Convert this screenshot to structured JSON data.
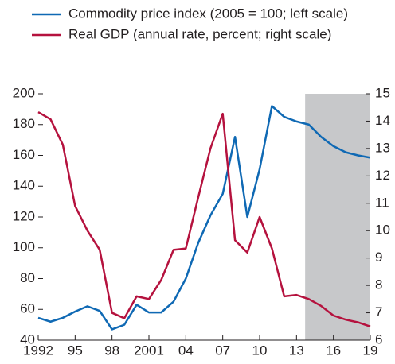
{
  "chart_data": {
    "type": "line",
    "x": [
      1992,
      1993,
      1994,
      1995,
      1996,
      1997,
      1998,
      1999,
      2000,
      2001,
      2002,
      2003,
      2004,
      2005,
      2006,
      2007,
      2008,
      2009,
      2010,
      2011,
      2012,
      2013,
      2014,
      2015,
      2016,
      2017,
      2018,
      2019
    ],
    "series": [
      {
        "name": "Commodity price index (2005 = 100; left scale)",
        "color": "#0f69b4",
        "values": [
          54.5,
          52,
          54.5,
          58.6,
          62,
          59,
          47,
          50,
          63,
          58,
          58,
          65,
          80,
          103,
          121,
          135,
          172,
          120,
          151,
          192,
          185,
          182,
          180,
          172,
          166,
          162,
          160,
          158.5
        ]
      },
      {
        "name": "Real GDP (annual rate, percent; right scale)",
        "color": "#b5123e",
        "axis": "y2",
        "values": [
          14.33,
          14.07,
          13.14,
          10.9,
          10.0,
          9.3,
          7.0,
          6.8,
          7.6,
          7.5,
          8.2,
          9.3,
          9.35,
          11.2,
          13.0,
          14.27,
          9.65,
          9.2,
          10.5,
          9.35,
          7.6,
          7.65,
          7.5,
          7.25,
          6.9,
          6.75,
          6.65,
          6.5
        ]
      }
    ],
    "xlim": [
      1992,
      2019
    ],
    "xticks": [
      1992,
      {
        "value": 1995,
        "label": "95"
      },
      {
        "value": 1998,
        "label": "98"
      },
      2001,
      {
        "value": 2004,
        "label": "04"
      },
      {
        "value": 2007,
        "label": "07"
      },
      {
        "value": 2010,
        "label": "10"
      },
      {
        "value": 2013,
        "label": "13"
      },
      {
        "value": 2016,
        "label": "16"
      },
      {
        "value": 2019,
        "label": "19"
      }
    ],
    "ylim": [
      40,
      200
    ],
    "yticks": [
      40,
      60,
      80,
      100,
      120,
      140,
      160,
      180,
      200
    ],
    "y2lim": [
      6,
      15
    ],
    "y2ticks": [
      6,
      7,
      8,
      9,
      10,
      11,
      12,
      13,
      14,
      15
    ],
    "shaded_x": [
      2013.7,
      2019
    ],
    "shade_color": "#c7c8ca",
    "legend": "top-left"
  }
}
